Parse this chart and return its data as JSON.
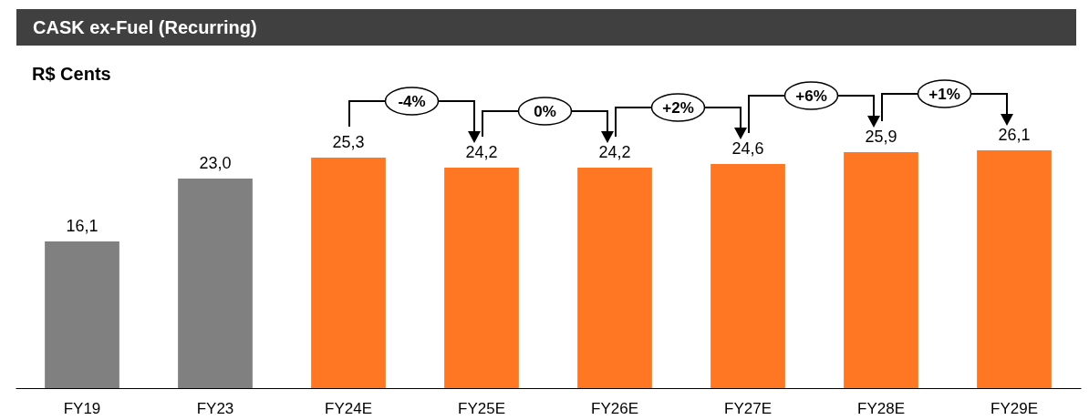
{
  "chart_data": {
    "type": "bar",
    "title": "CASK ex-Fuel (Recurring)",
    "subtitle": "R$ Cents",
    "categories": [
      "FY19",
      "FY23",
      "FY24E",
      "FY25E",
      "FY26E",
      "FY27E",
      "FY28E",
      "FY29E"
    ],
    "values": [
      16.1,
      23.0,
      25.3,
      24.2,
      24.2,
      24.6,
      25.9,
      26.1
    ],
    "value_labels": [
      "16,1",
      "23,0",
      "25,3",
      "24,2",
      "24,2",
      "24,6",
      "25,9",
      "26,1"
    ],
    "colors": [
      "#808080",
      "#808080",
      "#ff7722",
      "#ff7722",
      "#ff7722",
      "#ff7722",
      "#ff7722",
      "#ff7722"
    ],
    "annotations": [
      "-4%",
      "0%",
      "+2%",
      "+6%",
      "+1%"
    ],
    "grid": false
  }
}
